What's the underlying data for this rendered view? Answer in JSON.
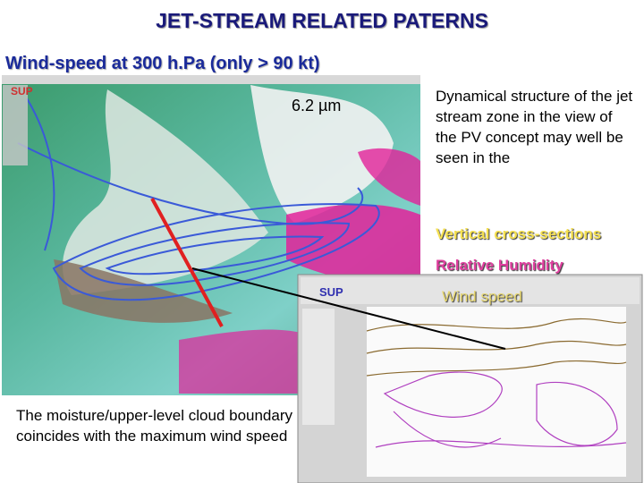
{
  "title": "JET-STREAM RELATED PATERNS",
  "subtitle": "Wind-speed at 300 h.Pa (only > 90 kt)",
  "image_label": "6.2 µm",
  "description": "Dynamical structure of the jet stream zone in the view of the PV concept may well be seen in the",
  "links": [
    "Vertical cross-sections",
    "Relative Humidity",
    "Wind speed"
  ],
  "caption": "The moisture/upper-level cloud boundary coincides with the maximum wind speed",
  "screenshots": [
    {
      "logo": "SUP"
    },
    {
      "logo": "SUP"
    }
  ]
}
